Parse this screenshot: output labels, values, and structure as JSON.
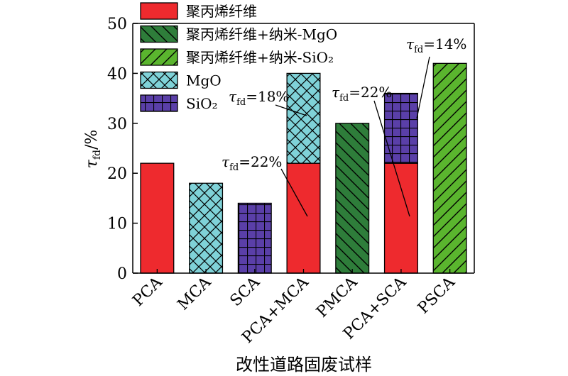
{
  "chart_data": {
    "type": "bar",
    "stacked": true,
    "xlabel": "改性道路固废试样",
    "ylabel": {
      "symbol": "τ",
      "subscript": "fd",
      "unit": "/%"
    },
    "ylim": [
      0,
      50
    ],
    "yticks": [
      0,
      10,
      20,
      30,
      40,
      50
    ],
    "categories": [
      "PCA",
      "MCA",
      "SCA",
      "PCA+MCA",
      "PMCA",
      "PCA+SCA",
      "PSCA"
    ],
    "series": [
      {
        "name": "聚丙烯纤维",
        "key": "pp",
        "color": "#ee2a2e",
        "pattern": "solid",
        "values": [
          22,
          0,
          0,
          22,
          0,
          22,
          0
        ]
      },
      {
        "name": "聚丙烯纤维+纳米-MgO",
        "key": "ppmgo",
        "color": "#2e7d3a",
        "pattern": "backslash",
        "values": [
          0,
          0,
          0,
          0,
          30,
          0,
          0
        ]
      },
      {
        "name": "聚丙烯纤维+纳米-SiO₂",
        "key": "ppsio2",
        "color": "#5ab52e",
        "pattern": "slash",
        "values": [
          0,
          0,
          0,
          0,
          0,
          0,
          42
        ]
      },
      {
        "name": "MgO",
        "key": "mgo",
        "color": "#7fd2d8",
        "pattern": "crosshatch",
        "values": [
          0,
          18,
          0,
          18,
          0,
          0,
          0
        ]
      },
      {
        "name": "SiO₂",
        "key": "sio2",
        "color": "#5a3fa8",
        "pattern": "grid",
        "values": [
          0,
          0,
          14,
          0,
          0,
          14,
          0
        ]
      }
    ],
    "legend_position": "top-left",
    "annotations": [
      {
        "text": "=18%",
        "symbol": "τ",
        "sub": "fd"
      },
      {
        "text": "=22%",
        "symbol": "τ",
        "sub": "fd"
      },
      {
        "text": "=22%",
        "symbol": "τ",
        "sub": "fd"
      },
      {
        "text": "=14%",
        "symbol": "τ",
        "sub": "fd"
      }
    ]
  }
}
